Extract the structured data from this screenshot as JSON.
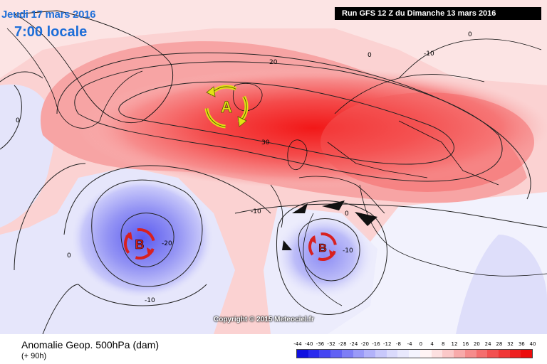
{
  "header": {
    "date": "Jeudi 17 mars 2016",
    "time": "7:00 locale",
    "run_info": "Run GFS 12 Z du Dimanche 13 mars 2016"
  },
  "map": {
    "contour_labels": [
      "20",
      "30",
      "0",
      "-10",
      "-10",
      "0",
      "-20",
      "0",
      "-10",
      "0",
      "-10",
      "0"
    ],
    "pressure_systems": [
      {
        "letter": "A",
        "type": "anticyclone"
      },
      {
        "letter": "B",
        "type": "depression"
      },
      {
        "letter": "B",
        "type": "depression"
      }
    ]
  },
  "copyright": "Copyright © 2015 Meteociel.fr",
  "legend": {
    "title": "Anomalie Geop. 500hPa (dam)",
    "subtitle": "(+ 90h)",
    "scale_labels": [
      "-44",
      "-40",
      "-36",
      "-32",
      "-28",
      "-24",
      "-20",
      "-16",
      "-12",
      "-8",
      "-4",
      "0",
      "4",
      "8",
      "12",
      "16",
      "20",
      "24",
      "28",
      "32",
      "36",
      "40"
    ],
    "colors": [
      "#1010e0",
      "#2a2aee",
      "#4646f2",
      "#6262f4",
      "#7e7ef6",
      "#9a9af8",
      "#b2b2fa",
      "#c8c8fb",
      "#dadafc",
      "#e8e8fd",
      "#f4f4fe",
      "#fff4f4",
      "#fde0e0",
      "#fbc8c8",
      "#f8aaaa",
      "#f68c8c",
      "#f46e6e",
      "#f25050",
      "#f03636",
      "#ee2020",
      "#ec0c0c"
    ]
  }
}
